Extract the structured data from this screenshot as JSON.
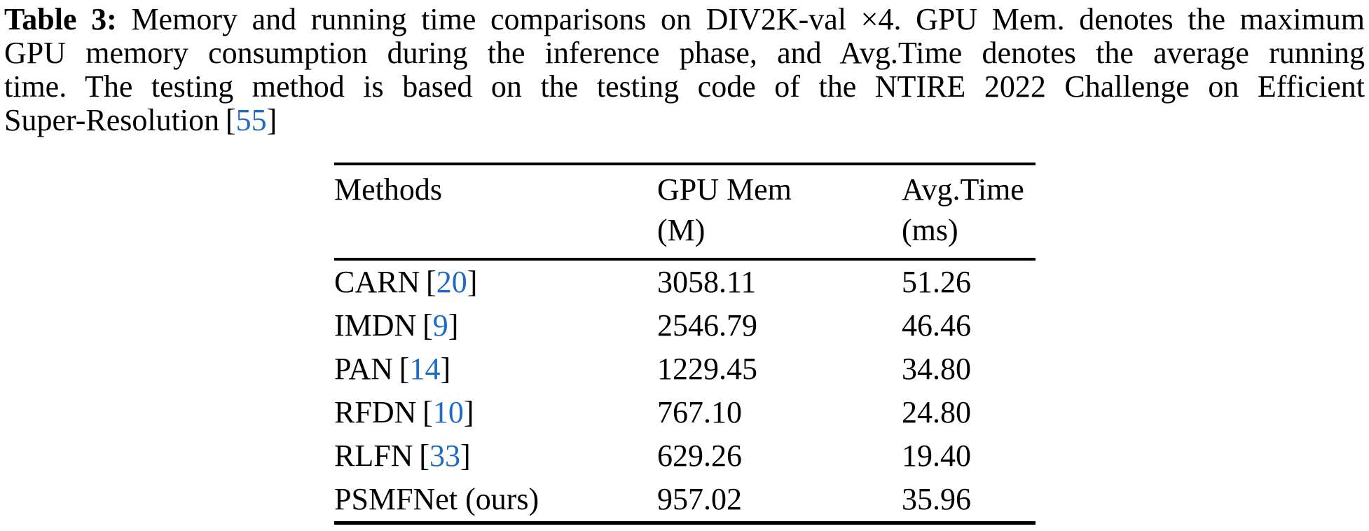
{
  "caption": {
    "label": "Table 3:",
    "line1_rest": "Memory and running time comparisons on DIV2K-val ×4. GPU Mem. denotes the maximum",
    "line2": "GPU memory consumption during the inference phase, and Avg.Time denotes the average running",
    "line3": "time. The testing method is based on the testing code of the NTIRE 2022 Challenge on Efficient",
    "line4_text": "Super-Resolution",
    "line4_ref": "55"
  },
  "symbols": {
    "bracket_open": "[",
    "bracket_close": "]"
  },
  "table": {
    "headers": {
      "methods": "Methods",
      "gpu_mem_line1": "GPU Mem",
      "gpu_mem_line2": "(M)",
      "avg_time_line1": "Avg.Time",
      "avg_time_line2": "(ms)"
    },
    "rows": [
      {
        "method": "CARN",
        "ref": "20",
        "gpu_mem": "3058.11",
        "avg_time": "51.26"
      },
      {
        "method": "IMDN",
        "ref": "9",
        "gpu_mem": "2546.79",
        "avg_time": "46.46"
      },
      {
        "method": "PAN",
        "ref": "14",
        "gpu_mem": "1229.45",
        "avg_time": "34.80"
      },
      {
        "method": "RFDN",
        "ref": "10",
        "gpu_mem": "767.10",
        "avg_time": "24.80"
      },
      {
        "method": "RLFN",
        "ref": "33",
        "gpu_mem": "629.26",
        "avg_time": "19.40"
      },
      {
        "method": "PSMFNet (ours)",
        "ref": "",
        "gpu_mem": "957.02",
        "avg_time": "35.96"
      }
    ]
  },
  "colors": {
    "citation_blue": "#1e6cc6",
    "text": "#000000",
    "background": "#ffffff"
  }
}
